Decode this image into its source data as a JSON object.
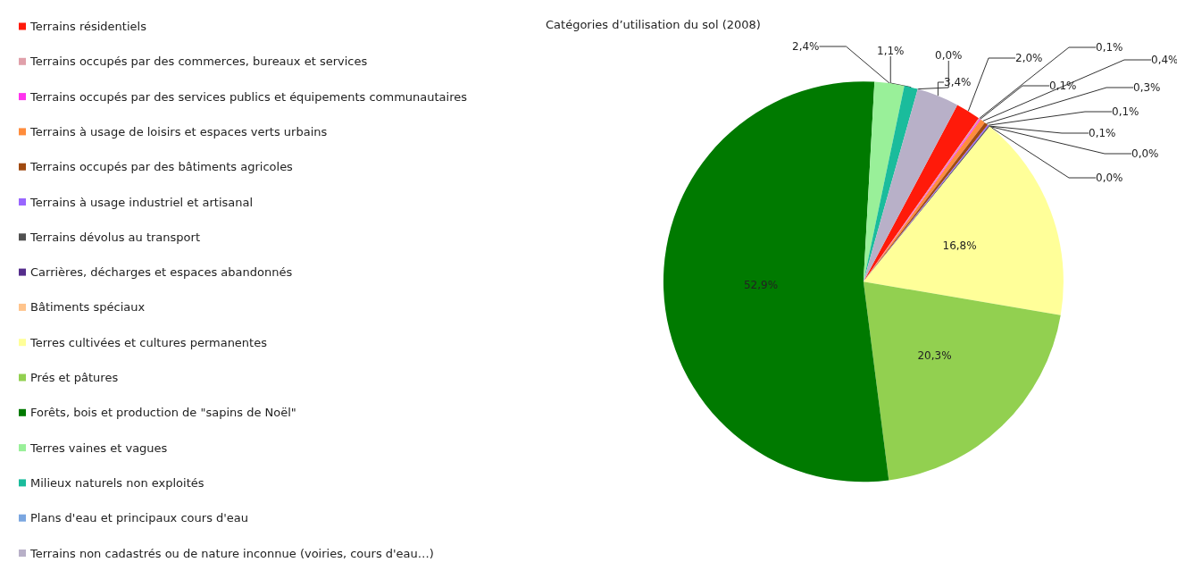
{
  "chart_data": {
    "type": "pie",
    "title": "Catégories d’utilisation du sol (2008)",
    "categories": [
      "Terrains résidentiels",
      "Terrains occupés par des commerces, bureaux et services",
      "Terrains occupés par des services publics et équipements communautaires",
      "Terrains à usage de loisirs et espaces verts urbains",
      "Terrains occupés par des bâtiments agricoles",
      "Terrains à usage industriel et artisanal",
      "Terrains dévolus au transport",
      "Carrières, décharges et espaces abandonnés",
      "Bâtiments spéciaux",
      "Terres cultivées et cultures permanentes",
      "Prés et pâtures",
      "Forêts, bois et production de \"sapins de Noël\"",
      "Terres vaines et vagues",
      "Milieux naturels non exploités",
      "Plans d'eau et principaux cours d'eau",
      "Terrains non cadastrés ou de nature inconnue (voiries, cours d'eau…)"
    ],
    "values": [
      2.0,
      0.1,
      0.1,
      0.4,
      0.3,
      0.1,
      0.1,
      0.0,
      0.0,
      16.8,
      20.3,
      52.9,
      2.4,
      1.1,
      0.0,
      3.4
    ],
    "value_labels": [
      "2,0%",
      "0,1%",
      "0,1%",
      "0,4%",
      "0,3%",
      "0,1%",
      "0,1%",
      "0,0%",
      "0,0%",
      "16,8%",
      "20,3%",
      "52,9%",
      "2,4%",
      "1,1%",
      "0,0%",
      "3,4%"
    ],
    "colors": [
      "#ff1a0a",
      "#e0a0aa",
      "#ff33ee",
      "#ff8c3c",
      "#a04a10",
      "#9966ff",
      "#505050",
      "#552d8c",
      "#ffc48c",
      "#ffff99",
      "#92d050",
      "#007a00",
      "#99f099",
      "#1abc9c",
      "#7aa6e0",
      "#b8b0c8"
    ],
    "legend": "left"
  }
}
